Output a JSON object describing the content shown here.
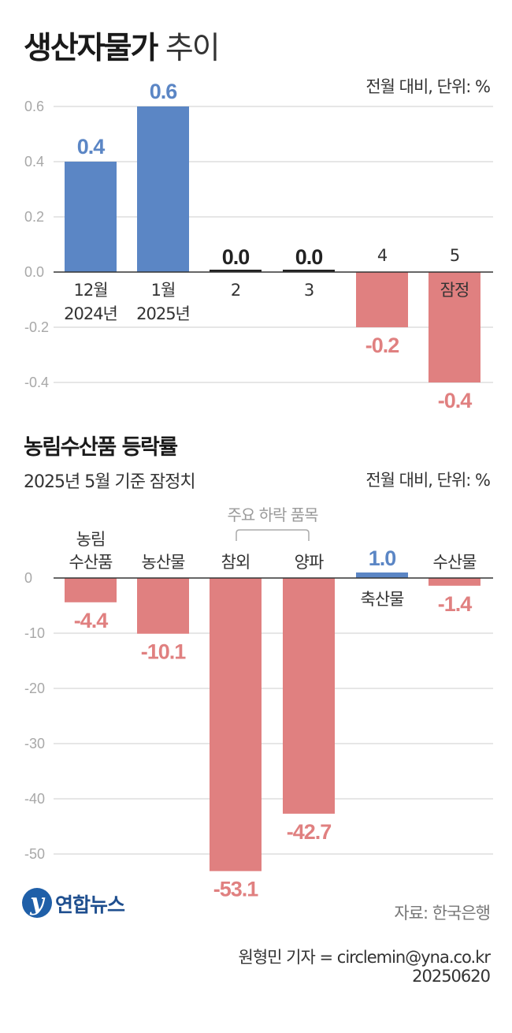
{
  "title": {
    "bold": "생산자물가",
    "light": "추이"
  },
  "unit_top": "전월 대비, 단위: %",
  "title2": "농림수산품 등락률",
  "subtitle2": "2025년 5월 기준 잠정치",
  "unit_bottom": "전월 대비, 단위: %",
  "bracket_label": "주요 하락 품목",
  "source": "자료: 한국은행",
  "reporter": "원형민 기자 = circlemin@yna.co.kr",
  "date": "20250620",
  "logo_text": "연합뉴스",
  "colors": {
    "positive": "#5b86c5",
    "negative": "#e08080",
    "zero": "#222222",
    "grid": "#cccccc"
  },
  "chart_data": [
    {
      "type": "bar",
      "title": "생산자물가 추이",
      "ylabel": "전월 대비, 단위: %",
      "ylim": [
        -0.4,
        0.6
      ],
      "yticks": [
        "0.6",
        "0.4",
        "0.2",
        "0.0",
        "-0.2",
        "-0.4"
      ],
      "categories": [
        {
          "lines": [
            "12월",
            "2024년"
          ]
        },
        {
          "lines": [
            "1월",
            "2025년"
          ]
        },
        {
          "lines": [
            "2"
          ]
        },
        {
          "lines": [
            "3"
          ]
        },
        {
          "lines": [
            "4"
          ]
        },
        {
          "lines": [
            "5"
          ],
          "note": "잠정"
        }
      ],
      "values": [
        0.4,
        0.6,
        0.0,
        0.0,
        -0.2,
        -0.4
      ],
      "labels": [
        "0.4",
        "0.6",
        "0.0",
        "0.0",
        "-0.2",
        "-0.4"
      ]
    },
    {
      "type": "bar",
      "title": "농림수산품 등락률",
      "subtitle": "2025년 5월 기준 잠정치",
      "ylabel": "전월 대비, 단위: %",
      "ylim": [
        -50,
        0
      ],
      "yticks": [
        "0",
        "-10",
        "-20",
        "-30",
        "-40",
        "-50"
      ],
      "categories": [
        {
          "lines": [
            "농림",
            "수산품"
          ]
        },
        {
          "lines": [
            "농산물"
          ]
        },
        {
          "lines": [
            "참외"
          ]
        },
        {
          "lines": [
            "양파"
          ]
        },
        {
          "lines": [
            "축산물"
          ]
        },
        {
          "lines": [
            "수산물"
          ]
        }
      ],
      "values": [
        -4.4,
        -10.1,
        -53.1,
        -42.7,
        1.0,
        -1.4
      ],
      "labels": [
        "-4.4",
        "-10.1",
        "-53.1",
        "-42.7",
        "1.0",
        "-1.4"
      ]
    }
  ]
}
